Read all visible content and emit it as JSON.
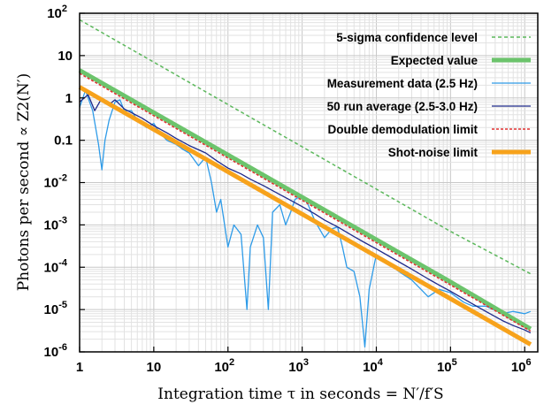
{
  "chart_data": {
    "type": "line",
    "xlabel": "Integration time τ in seconds = N′/f′S",
    "ylabel": "Photons per second ∝ Z2(N′)",
    "x_scale": "log",
    "y_scale": "log",
    "xlim": [
      1,
      1500000
    ],
    "ylim": [
      1e-06,
      100
    ],
    "grid": true,
    "legend_position": "top-right",
    "x_ticks": [
      {
        "value": 1,
        "label": "1"
      },
      {
        "value": 10,
        "label": "10"
      },
      {
        "value": 100,
        "base": "10",
        "exp": "2"
      },
      {
        "value": 1000,
        "base": "10",
        "exp": "3"
      },
      {
        "value": 10000,
        "base": "10",
        "exp": "4"
      },
      {
        "value": 100000,
        "base": "10",
        "exp": "5"
      },
      {
        "value": 1000000,
        "base": "10",
        "exp": "6"
      }
    ],
    "y_ticks": [
      {
        "value": 1e-06,
        "base": "10",
        "exp": "-6"
      },
      {
        "value": 1e-05,
        "base": "10",
        "exp": "-5"
      },
      {
        "value": 0.0001,
        "base": "10",
        "exp": "-4"
      },
      {
        "value": 0.001,
        "base": "10",
        "exp": "-3"
      },
      {
        "value": 0.01,
        "base": "10",
        "exp": "-2"
      },
      {
        "value": 0.1,
        "label": "0.1"
      },
      {
        "value": 1,
        "label": "1"
      },
      {
        "value": 10,
        "label": "10"
      },
      {
        "value": 100,
        "base": "10",
        "exp": "2"
      }
    ],
    "series": [
      {
        "name": "5-sigma confidence level",
        "color": "#5cb85c",
        "style": "dashed",
        "x": [
          1,
          10,
          100,
          1000,
          10000,
          100000,
          1200000
        ],
        "y": [
          70,
          7,
          0.7,
          0.07,
          0.007,
          0.0007,
          7e-05
        ]
      },
      {
        "name": "Expected value",
        "color": "#6cc46c",
        "style": "thick",
        "x": [
          1,
          10,
          100,
          1000,
          10000,
          100000,
          1200000
        ],
        "y": [
          4.5,
          0.45,
          0.045,
          0.0045,
          0.00045,
          4.5e-05,
          3.5e-06
        ]
      },
      {
        "name": "Measurement data (2.5 Hz)",
        "color": "#2e9be8",
        "style": "thin",
        "x": [
          1,
          1.2,
          1.5,
          1.8,
          2,
          2.2,
          2.5,
          3,
          3.5,
          4,
          5,
          6,
          8,
          10,
          12,
          15,
          20,
          25,
          30,
          40,
          50,
          60,
          70,
          80,
          100,
          120,
          150,
          180,
          200,
          250,
          300,
          350,
          400,
          500,
          600,
          700,
          800,
          1000,
          1200,
          1500,
          2000,
          2500,
          3000,
          3500,
          4000,
          5000,
          6000,
          7000,
          8000,
          10000,
          12000,
          15000,
          20000,
          30000,
          40000,
          50000,
          70000,
          100000,
          150000,
          200000,
          300000,
          500000,
          700000,
          1000000,
          1200000
        ],
        "y": [
          0.6,
          1.5,
          0.5,
          0.08,
          0.02,
          0.1,
          0.3,
          0.8,
          0.9,
          0.5,
          0.5,
          0.3,
          0.2,
          0.25,
          0.15,
          0.1,
          0.08,
          0.06,
          0.05,
          0.025,
          0.04,
          0.01,
          0.002,
          0.004,
          0.0003,
          0.001,
          0.0006,
          1e-05,
          0.0003,
          0.001,
          0.0005,
          1e-05,
          0.002,
          0.003,
          0.001,
          0.002,
          0.004,
          0.005,
          0.003,
          0.0012,
          0.0005,
          0.0008,
          0.0009,
          0.0003,
          0.0001,
          8e-05,
          2e-05,
          1.3e-06,
          3e-05,
          0.0002,
          0.00015,
          0.00012,
          8e-05,
          5e-05,
          3e-05,
          2e-05,
          3e-05,
          2.5e-05,
          1.5e-05,
          1.2e-05,
          1.2e-05,
          8e-06,
          9e-06,
          8e-06,
          9e-06
        ]
      },
      {
        "name": "50 run average (2.5-3.0 Hz)",
        "color": "#1f2a8a",
        "style": "thin",
        "x": [
          1,
          1.3,
          1.6,
          2,
          2.5,
          3,
          4,
          5,
          7,
          10,
          15,
          20,
          30,
          50,
          70,
          100,
          150,
          200,
          300,
          500,
          700,
          1000,
          1500,
          2000,
          3000,
          5000,
          7000,
          10000,
          15000,
          20000,
          30000,
          50000,
          70000,
          100000,
          150000,
          200000,
          300000,
          500000,
          700000,
          1000000,
          1200000
        ],
        "y": [
          0.8,
          1.2,
          0.5,
          1.0,
          0.7,
          0.9,
          0.55,
          0.45,
          0.33,
          0.22,
          0.15,
          0.11,
          0.075,
          0.05,
          0.033,
          0.022,
          0.016,
          0.012,
          0.0085,
          0.0052,
          0.0038,
          0.0027,
          0.0018,
          0.0013,
          0.0009,
          0.00053,
          0.00038,
          0.00027,
          0.00018,
          0.000135,
          9e-05,
          5.3e-05,
          3.8e-05,
          2.7e-05,
          1.8e-05,
          1.35e-05,
          9e-06,
          5.5e-06,
          4.2e-06,
          3.3e-06,
          2.8e-06
        ]
      },
      {
        "name": "Double demodulation limit",
        "color": "#e03030",
        "style": "dotted",
        "x": [
          1,
          10,
          100,
          1000,
          10000,
          100000,
          1200000
        ],
        "y": [
          3.8,
          0.38,
          0.038,
          0.0038,
          0.00038,
          3.8e-05,
          3.1e-06
        ]
      },
      {
        "name": "Shot-noise limit",
        "color": "#f7a21b",
        "style": "thick",
        "x": [
          1,
          10,
          100,
          1000,
          10000,
          100000,
          1200000
        ],
        "y": [
          1.8,
          0.18,
          0.018,
          0.0018,
          0.00018,
          1.8e-05,
          1.5e-06
        ]
      }
    ]
  }
}
